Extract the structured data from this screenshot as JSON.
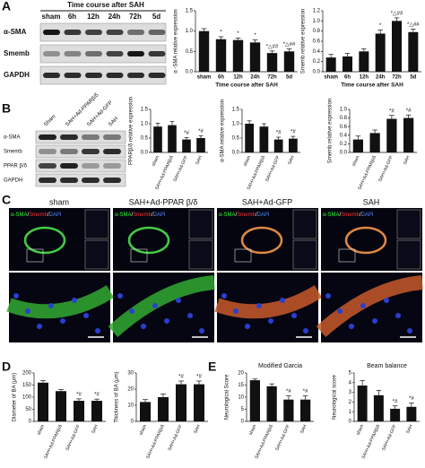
{
  "panel_labels": [
    "A",
    "B",
    "C",
    "D",
    "E"
  ],
  "blot_a": {
    "header": "Time course after SAH",
    "lanes": [
      "sham",
      "6h",
      "12h",
      "24h",
      "72h",
      "5d"
    ],
    "rows": [
      "α-SMA",
      "Smemb",
      "GAPDH"
    ]
  },
  "blot_b": {
    "lanes": [
      "Sham",
      "SAH+Ad-PPARβ/δ",
      "SAH+Ad-GFP",
      "SAH"
    ],
    "rows": [
      "α-SMA",
      "Smemb",
      "PPAR β/δ",
      "GAPDH"
    ]
  },
  "panel_c": {
    "titles": [
      "sham",
      "SAH+Ad-PPAR β/δ",
      "SAH+Ad-GFP",
      "SAH"
    ],
    "stains": [
      "α-SMA",
      "/",
      "Smemb",
      "/",
      "DAPI"
    ]
  },
  "chart_data": [
    {
      "type": "bar",
      "ylabel": "α -SMA relative expression",
      "xlabel": "Time course after SAH",
      "categories": [
        "sham",
        "6h",
        "12h",
        "24h",
        "72h",
        "5d"
      ],
      "values": [
        1.0,
        0.8,
        0.78,
        0.72,
        0.46,
        0.5
      ],
      "errors": [
        0.06,
        0.06,
        0.05,
        0.06,
        0.05,
        0.06
      ],
      "annotations": [
        null,
        "*",
        "*",
        "*",
        "*△##",
        "*△##"
      ],
      "color": "#111111",
      "ylim": [
        0,
        1.5
      ],
      "yticks": [
        {
          "value": 0,
          "label": "0.0"
        },
        0.5,
        {
          "value": 1,
          "label": "1.0"
        },
        1.5
      ]
    },
    {
      "type": "bar",
      "ylabel": "Smemb relative expression",
      "xlabel": "Time course after SAH",
      "categories": [
        "sham",
        "6h",
        "12h",
        "24h",
        "72h",
        "5d"
      ],
      "values": [
        0.28,
        0.3,
        0.4,
        0.75,
        1.0,
        0.78
      ],
      "errors": [
        0.06,
        0.06,
        0.05,
        0.07,
        0.06,
        0.06
      ],
      "annotations": [
        null,
        null,
        null,
        "*",
        "*△##",
        "*△##"
      ],
      "color": "#111111",
      "ylim": [
        0,
        1.2
      ],
      "yticks": [
        {
          "value": 0,
          "label": "0.0"
        },
        0.2,
        0.4,
        0.6,
        0.8,
        {
          "value": 1,
          "label": "1.0"
        },
        1.2
      ]
    },
    {
      "type": "bar",
      "ylabel": "PPARβ/δ relative expression",
      "categories": [
        "sham",
        "SAH+Ad-PPARβ/δ",
        "SAH+Ad-GFP",
        "SAH"
      ],
      "values": [
        0.9,
        0.95,
        0.45,
        0.5
      ],
      "errors": [
        0.12,
        0.13,
        0.07,
        0.08
      ],
      "annotations": [
        null,
        null,
        "*#",
        "*#"
      ],
      "color": "#111111",
      "ylim": [
        0,
        1.5
      ],
      "yticks": [
        {
          "value": 0,
          "label": "0.0"
        },
        0.5,
        {
          "value": 1,
          "label": "1.0"
        },
        1.5
      ]
    },
    {
      "type": "bar",
      "ylabel": "α-SMA relative expression",
      "categories": [
        "sham",
        "SAH+Ad-PPARβ/δ",
        "SAH+Ad-GFP",
        "SAH"
      ],
      "values": [
        1.0,
        0.9,
        0.45,
        0.48
      ],
      "errors": [
        0.1,
        0.1,
        0.08,
        0.08
      ],
      "annotations": [
        null,
        null,
        "*#",
        "*#"
      ],
      "color": "#111111",
      "ylim": [
        0,
        1.5
      ],
      "yticks": [
        {
          "value": 0,
          "label": "0.0"
        },
        0.5,
        {
          "value": 1,
          "label": "1.0"
        },
        1.5
      ]
    },
    {
      "type": "bar",
      "ylabel": "Smemb relative expression",
      "categories": [
        "sham",
        "SAH+Ad-PPARβ/δ",
        "SAH+Ad-GFP",
        "SAH"
      ],
      "values": [
        0.3,
        0.45,
        0.78,
        0.8
      ],
      "errors": [
        0.08,
        0.07,
        0.08,
        0.07
      ],
      "annotations": [
        null,
        null,
        "*#",
        "*#"
      ],
      "color": "#111111",
      "ylim": [
        0,
        1
      ],
      "yticks": [
        {
          "value": 0,
          "label": "0.0"
        },
        0.2,
        0.4,
        0.6,
        0.8,
        {
          "value": 1,
          "label": "1.0"
        }
      ]
    },
    {
      "type": "bar",
      "ylabel": "Diameter of BA (μm)",
      "categories": [
        "sham",
        "SAH+Ad-PPARβ/δ",
        "SAH+Ad-GFP",
        "SAH"
      ],
      "values": [
        160,
        125,
        85,
        85
      ],
      "errors": [
        8,
        6,
        8,
        7
      ],
      "annotations": [
        null,
        null,
        "*#",
        "*#"
      ],
      "color": "#111111",
      "ylim": [
        0,
        200
      ],
      "yticks": [
        0,
        50,
        100,
        150,
        200
      ]
    },
    {
      "type": "bar",
      "ylabel": "Thickness of BA (μm)",
      "categories": [
        "sham",
        "SAH+Ad-PPARβ/δ",
        "SAH+Ad-GFP",
        "SAH"
      ],
      "values": [
        12,
        15,
        23,
        23
      ],
      "errors": [
        1.5,
        2,
        2,
        2
      ],
      "annotations": [
        null,
        null,
        "*#",
        "*#"
      ],
      "color": "#111111",
      "ylim": [
        0,
        30
      ],
      "yticks": [
        0,
        10,
        20,
        30
      ]
    },
    {
      "type": "bar",
      "title": "Modified Garcia",
      "ylabel": "Neurological Score",
      "categories": [
        "sham",
        "SAH+Ad-PPARβ/δ",
        "SAH+Ad-GFP",
        "SAH"
      ],
      "values": [
        17,
        14.5,
        9,
        9
      ],
      "errors": [
        0.5,
        1,
        1.5,
        1.5
      ],
      "annotations": [
        null,
        null,
        "*#",
        "*#"
      ],
      "color": "#111111",
      "ylim": [
        0,
        20
      ],
      "yticks": [
        0,
        5,
        10,
        15,
        20
      ]
    },
    {
      "type": "bar",
      "title": "Beam balance",
      "ylabel": "Neurological score",
      "categories": [
        "sham",
        "SAH+Ad-PPARβ/δ",
        "SAH+Ad-GFP",
        "SAH"
      ],
      "values": [
        3.7,
        2.7,
        1.3,
        1.5
      ],
      "errors": [
        0.5,
        0.5,
        0.3,
        0.4
      ],
      "annotations": [
        null,
        null,
        "*#",
        "*#"
      ],
      "color": "#111111",
      "ylim": [
        0,
        5
      ],
      "yticks": [
        0,
        1,
        2,
        3,
        4,
        5
      ]
    }
  ]
}
